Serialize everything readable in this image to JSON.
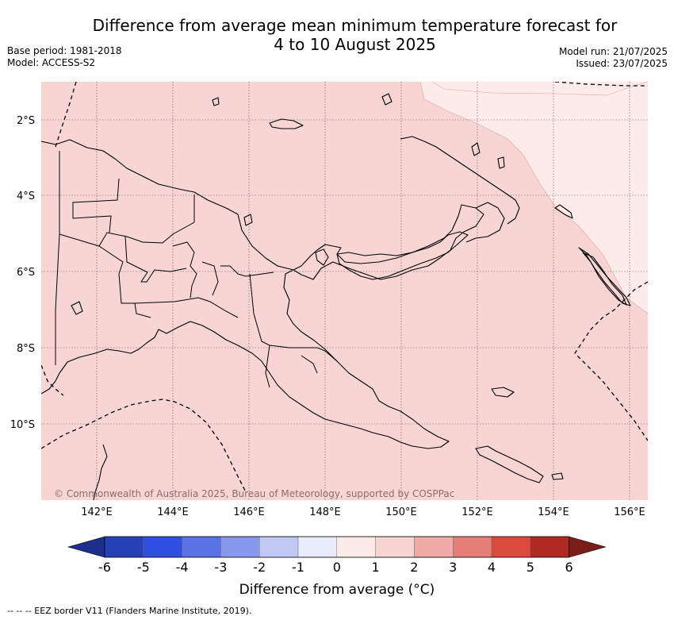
{
  "title_line1": "Difference from average mean minimum temperature forecast for",
  "title_line2": "4 to 10 August 2025",
  "base_period": "Base period: 1981-2018",
  "model": "Model: ACCESS-S2",
  "model_run": "Model run: 21/07/2025",
  "issued": "Issued: 23/07/2025",
  "copyright": "© Commonwealth of Australia 2025, Bureau of Meteorology, supported by COSPPac",
  "lat_labels": [
    "2°S",
    "4°S",
    "6°S",
    "8°S",
    "10°S"
  ],
  "lon_labels": [
    "142°E",
    "144°E",
    "146°E",
    "148°E",
    "150°E",
    "152°E",
    "154°E",
    "156°E"
  ],
  "colorbar": {
    "title": "Difference from average (°C)",
    "ticks": [
      "-6",
      "-5",
      "-4",
      "-3",
      "-2",
      "-1",
      "0",
      "1",
      "2",
      "3",
      "4",
      "5",
      "6"
    ],
    "colors": [
      "#1c2f8f",
      "#2541b5",
      "#2f4fe0",
      "#5b72e6",
      "#8797ec",
      "#c0c8f4",
      "#e8ecfb",
      "#fdebe8",
      "#f6d5d2",
      "#efaaa5",
      "#e47e76",
      "#dc4a3e",
      "#b02a22",
      "#7a1e1a"
    ],
    "extend": "both"
  },
  "map_fill": {
    "main": "#f6d5d2",
    "northeast": "#fdebe8"
  },
  "footnote": "--  --  -- EEZ border V11 (Flanders Marine Institute, 2019)."
}
